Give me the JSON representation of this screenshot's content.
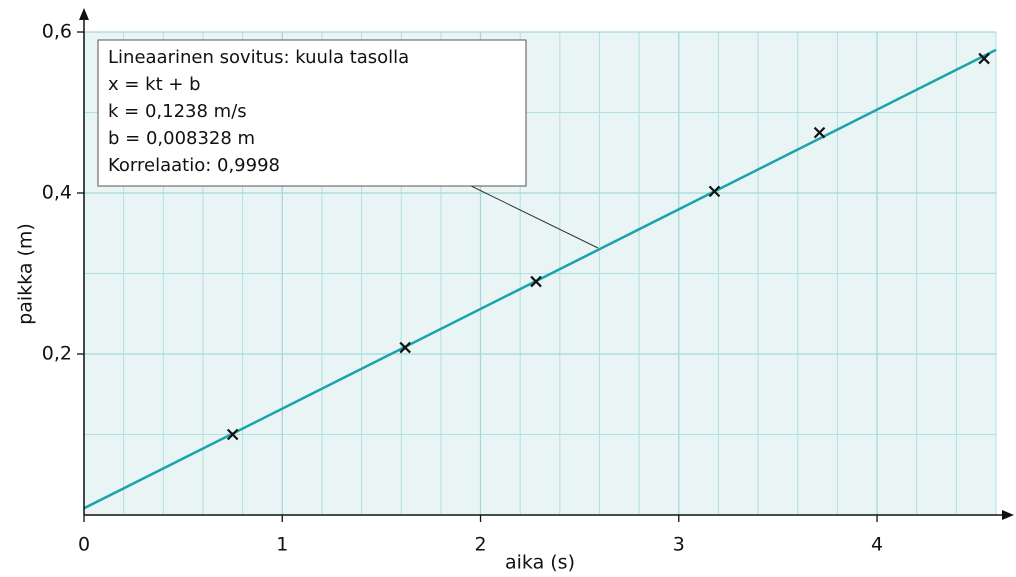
{
  "chart_data": {
    "type": "scatter",
    "xlabel": "aika (s)",
    "ylabel": "paikka (m)",
    "x": [
      0.75,
      1.62,
      2.28,
      3.18,
      3.71,
      4.54
    ],
    "values": [
      0.1,
      0.208,
      0.29,
      0.402,
      0.475,
      0.567
    ],
    "fit": {
      "k": 0.1238,
      "b": 0.008328
    },
    "xlim": [
      0,
      4.6
    ],
    "ylim": [
      0,
      0.6
    ],
    "xticks": [
      0,
      1,
      2,
      3,
      4
    ],
    "yticks": [
      {
        "value": 0.2,
        "label": "0,2"
      },
      {
        "value": 0.4,
        "label": "0,4"
      },
      {
        "value": 0.6,
        "label": "0,6"
      }
    ],
    "xminorticks": [
      0.2,
      0.4,
      0.6,
      0.8,
      1.2,
      1.4,
      1.6,
      1.8,
      2.2,
      2.4,
      2.6,
      2.8,
      3.2,
      3.4,
      3.6,
      3.8,
      4.2,
      4.4,
      4.6
    ],
    "yminorticks": [
      0.1,
      0.3,
      0.5
    ],
    "grid": true,
    "marker_color": "#111111",
    "fit_color": "#1aa3aa",
    "annotation": [
      "Lineaarinen sovitus: kuula tasolla",
      "x = kt + b",
      "k = 0,1238 m/s",
      "b = 0,008328 m",
      "Korrelaatio: 0,9998"
    ]
  }
}
